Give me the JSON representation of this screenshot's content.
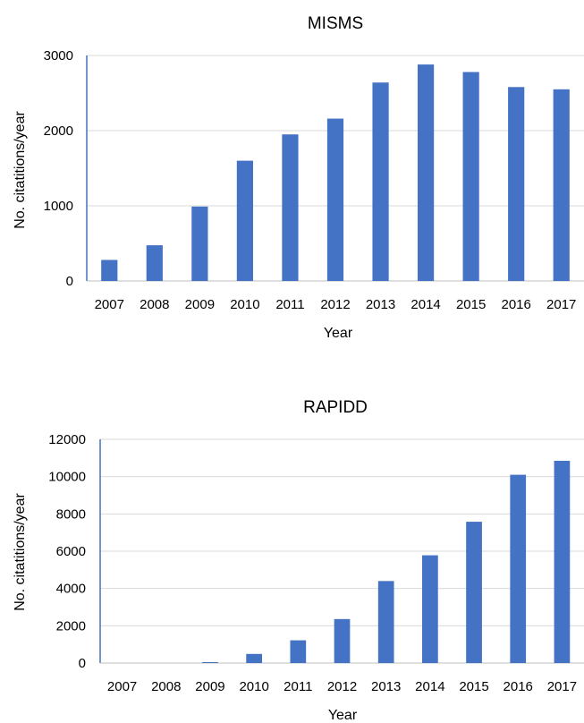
{
  "chart_data": [
    {
      "type": "bar",
      "title": "MISMS",
      "xlabel": "Year",
      "ylabel": "No. citatitions/year",
      "categories": [
        "2007",
        "2008",
        "2009",
        "2010",
        "2011",
        "2012",
        "2013",
        "2014",
        "2015",
        "2016",
        "2017"
      ],
      "values": [
        280,
        475,
        990,
        1600,
        1950,
        2160,
        2640,
        2880,
        2780,
        2580,
        2550
      ],
      "ylim": [
        0,
        3000
      ],
      "yticks": [
        "0",
        "1000",
        "2000",
        "3000"
      ],
      "grid": true,
      "bar_color": "#4472c4"
    },
    {
      "type": "bar",
      "title": "RAPIDD",
      "xlabel": "Year",
      "ylabel": "No. citatitions/year",
      "categories": [
        "2007",
        "2008",
        "2009",
        "2010",
        "2011",
        "2012",
        "2013",
        "2014",
        "2015",
        "2016",
        "2017"
      ],
      "values": [
        0,
        0,
        50,
        490,
        1220,
        2360,
        4400,
        5780,
        7580,
        10100,
        10850
      ],
      "ylim": [
        0,
        12000
      ],
      "yticks": [
        "0",
        "2000",
        "4000",
        "6000",
        "8000",
        "10000",
        "12000"
      ],
      "grid": true,
      "bar_color": "#4472c4"
    }
  ]
}
